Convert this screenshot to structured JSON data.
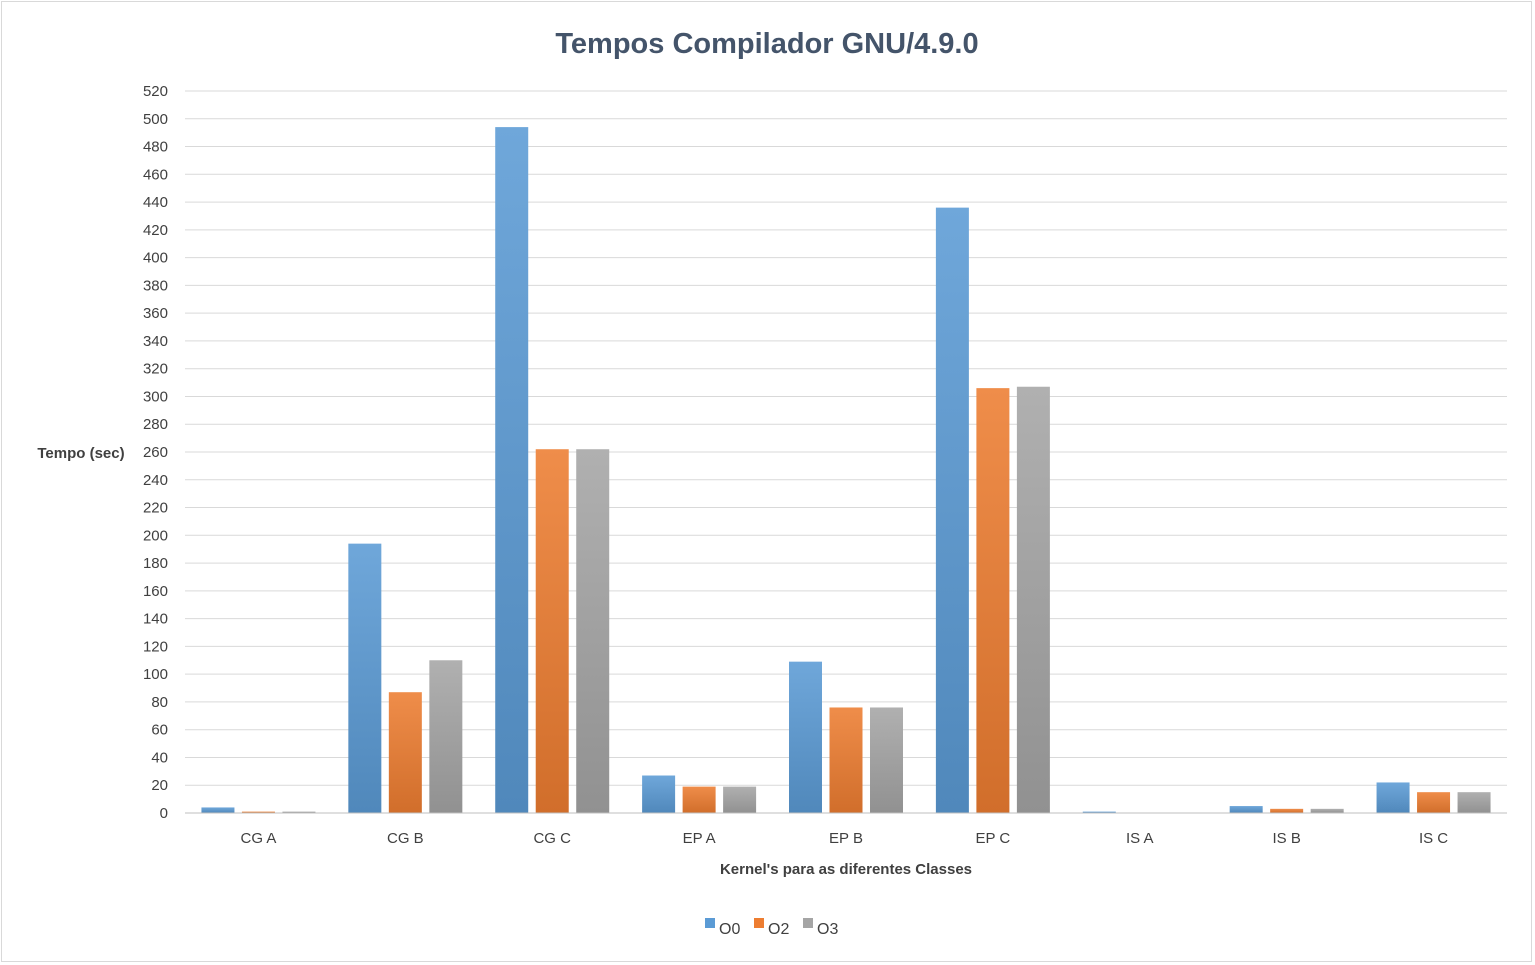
{
  "chart_data": {
    "type": "bar",
    "title": "Tempos Compilador GNU/4.9.0",
    "xlabel": "Kernel's para as diferentes Classes",
    "ylabel": "Tempo (sec)",
    "ylim": [
      0,
      520
    ],
    "ytick_step": 20,
    "grid": true,
    "legend_position": "bottom",
    "categories": [
      "CG A",
      "CG B",
      "CG C",
      "EP A",
      "EP B",
      "EP C",
      "IS A",
      "IS B",
      "IS C"
    ],
    "series": [
      {
        "name": "O0",
        "color": "#5b9bd5",
        "values": [
          4,
          194,
          494,
          27,
          109,
          436,
          1,
          5,
          22
        ]
      },
      {
        "name": "O2",
        "color": "#ed7d31",
        "values": [
          1,
          87,
          262,
          19,
          76,
          306,
          0,
          3,
          15
        ]
      },
      {
        "name": "O3",
        "color": "#a5a5a5",
        "values": [
          1,
          110,
          262,
          19,
          76,
          307,
          0,
          3,
          15
        ]
      }
    ]
  }
}
